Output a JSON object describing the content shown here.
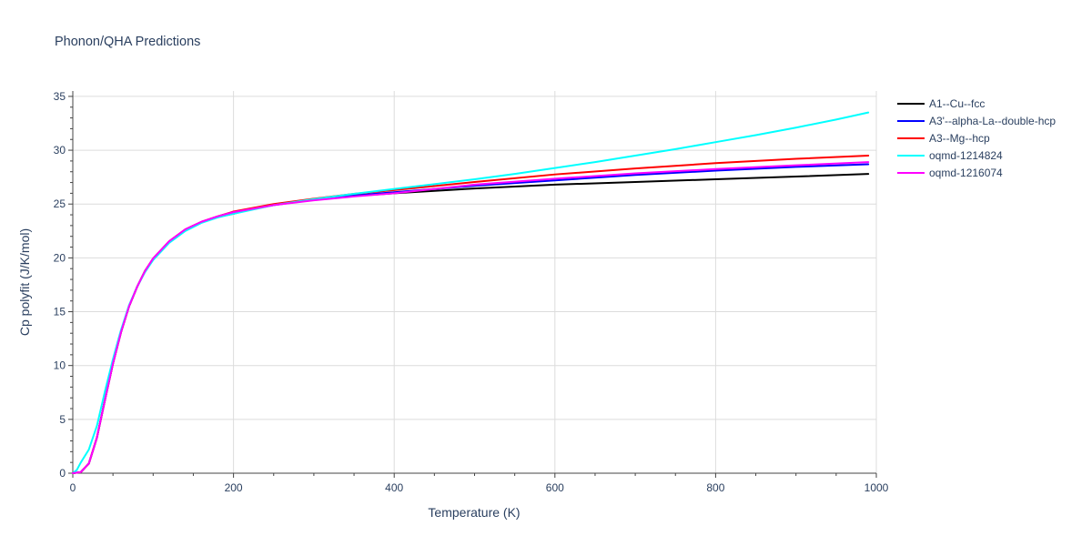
{
  "chart_data": {
    "type": "line",
    "title": "Phonon/QHA Predictions",
    "xlabel": "Temperature (K)",
    "ylabel": "Cp polyfit (J/K/mol)",
    "xlim": [
      0,
      1000
    ],
    "ylim": [
      0,
      35.5
    ],
    "xticks": [
      0,
      200,
      400,
      600,
      800,
      1000
    ],
    "yticks": [
      0,
      5,
      10,
      15,
      20,
      25,
      30,
      35
    ],
    "grid": true,
    "legend_position": "top-right",
    "series": [
      {
        "name": "A1--Cu--fcc",
        "color": "#000000",
        "points": [
          [
            0,
            0
          ],
          [
            10,
            0.1
          ],
          [
            20,
            0.9
          ],
          [
            30,
            3.3
          ],
          [
            40,
            6.8
          ],
          [
            50,
            10.2
          ],
          [
            60,
            13.1
          ],
          [
            70,
            15.5
          ],
          [
            80,
            17.3
          ],
          [
            90,
            18.8
          ],
          [
            100,
            19.9
          ],
          [
            120,
            21.5
          ],
          [
            140,
            22.6
          ],
          [
            160,
            23.3
          ],
          [
            180,
            23.8
          ],
          [
            200,
            24.1
          ],
          [
            225,
            24.6
          ],
          [
            250,
            24.95
          ],
          [
            300,
            25.4
          ],
          [
            350,
            25.75
          ],
          [
            400,
            26.0
          ],
          [
            500,
            26.45
          ],
          [
            600,
            26.8
          ],
          [
            700,
            27.05
          ],
          [
            800,
            27.3
          ],
          [
            900,
            27.55
          ],
          [
            990,
            27.8
          ]
        ]
      },
      {
        "name": "A3'--alpha-La--double-hcp",
        "color": "#0000ff",
        "points": [
          [
            0,
            0
          ],
          [
            10,
            0.1
          ],
          [
            20,
            0.9
          ],
          [
            30,
            3.3
          ],
          [
            40,
            6.8
          ],
          [
            50,
            10.2
          ],
          [
            60,
            13.1
          ],
          [
            70,
            15.5
          ],
          [
            80,
            17.3
          ],
          [
            90,
            18.8
          ],
          [
            100,
            19.9
          ],
          [
            120,
            21.5
          ],
          [
            140,
            22.6
          ],
          [
            160,
            23.3
          ],
          [
            180,
            23.8
          ],
          [
            200,
            24.2
          ],
          [
            250,
            24.9
          ],
          [
            300,
            25.4
          ],
          [
            350,
            25.8
          ],
          [
            400,
            26.1
          ],
          [
            500,
            26.7
          ],
          [
            600,
            27.2
          ],
          [
            700,
            27.7
          ],
          [
            800,
            28.1
          ],
          [
            900,
            28.45
          ],
          [
            990,
            28.7
          ]
        ]
      },
      {
        "name": "A3--Mg--hcp",
        "color": "#ff0000",
        "points": [
          [
            0,
            0
          ],
          [
            10,
            0.1
          ],
          [
            20,
            0.9
          ],
          [
            30,
            3.3
          ],
          [
            40,
            6.8
          ],
          [
            50,
            10.2
          ],
          [
            60,
            13.1
          ],
          [
            70,
            15.5
          ],
          [
            80,
            17.3
          ],
          [
            90,
            18.8
          ],
          [
            100,
            19.95
          ],
          [
            120,
            21.55
          ],
          [
            140,
            22.65
          ],
          [
            160,
            23.35
          ],
          [
            180,
            23.85
          ],
          [
            200,
            24.3
          ],
          [
            250,
            25.0
          ],
          [
            300,
            25.5
          ],
          [
            350,
            25.95
          ],
          [
            400,
            26.3
          ],
          [
            500,
            27.05
          ],
          [
            600,
            27.75
          ],
          [
            700,
            28.3
          ],
          [
            800,
            28.8
          ],
          [
            900,
            29.2
          ],
          [
            990,
            29.5
          ]
        ]
      },
      {
        "name": "oqmd-1214824",
        "color": "#00ffff",
        "points": [
          [
            0,
            0
          ],
          [
            5,
            0.3
          ],
          [
            10,
            1.0
          ],
          [
            20,
            2.2
          ],
          [
            30,
            4.4
          ],
          [
            40,
            7.6
          ],
          [
            50,
            10.6
          ],
          [
            60,
            13.3
          ],
          [
            70,
            15.6
          ],
          [
            80,
            17.3
          ],
          [
            90,
            18.7
          ],
          [
            100,
            19.8
          ],
          [
            120,
            21.4
          ],
          [
            140,
            22.5
          ],
          [
            160,
            23.25
          ],
          [
            180,
            23.75
          ],
          [
            200,
            24.1
          ],
          [
            250,
            24.9
          ],
          [
            300,
            25.45
          ],
          [
            350,
            25.95
          ],
          [
            400,
            26.4
          ],
          [
            450,
            26.85
          ],
          [
            500,
            27.3
          ],
          [
            550,
            27.8
          ],
          [
            600,
            28.35
          ],
          [
            650,
            28.9
          ],
          [
            700,
            29.5
          ],
          [
            750,
            30.1
          ],
          [
            800,
            30.75
          ],
          [
            850,
            31.4
          ],
          [
            900,
            32.1
          ],
          [
            950,
            32.85
          ],
          [
            990,
            33.5
          ]
        ]
      },
      {
        "name": "oqmd-1216074",
        "color": "#ff00ff",
        "points": [
          [
            0,
            0
          ],
          [
            10,
            0.1
          ],
          [
            20,
            0.9
          ],
          [
            30,
            3.3
          ],
          [
            40,
            6.8
          ],
          [
            50,
            10.2
          ],
          [
            60,
            13.1
          ],
          [
            70,
            15.5
          ],
          [
            80,
            17.3
          ],
          [
            90,
            18.8
          ],
          [
            100,
            19.95
          ],
          [
            120,
            21.55
          ],
          [
            140,
            22.65
          ],
          [
            160,
            23.35
          ],
          [
            180,
            23.85
          ],
          [
            200,
            24.25
          ],
          [
            250,
            24.9
          ],
          [
            300,
            25.35
          ],
          [
            350,
            25.7
          ],
          [
            400,
            26.0
          ],
          [
            500,
            26.8
          ],
          [
            600,
            27.35
          ],
          [
            700,
            27.85
          ],
          [
            800,
            28.25
          ],
          [
            900,
            28.6
          ],
          [
            990,
            28.9
          ]
        ]
      }
    ]
  }
}
